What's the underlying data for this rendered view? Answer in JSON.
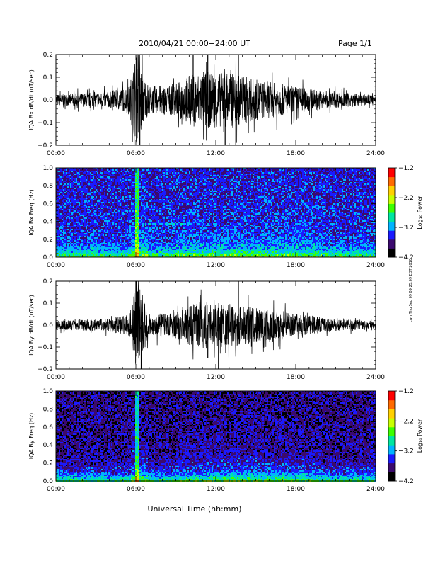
{
  "header": {
    "title": "2010/04/21  00:00−24:00 UT",
    "page": "Page 1/1"
  },
  "footer_stamp": "cwh Thu Sep 09 09:25:09 EDT 2010",
  "xaxis": {
    "label": "Universal Time (hh:mm)",
    "ticks": [
      "00:00",
      "06:00",
      "12:00",
      "18:00",
      "24:00"
    ],
    "range_hours": [
      0,
      24
    ]
  },
  "colorbar": {
    "label": "Log₁₀ Power",
    "ticks": [
      "−1.2",
      "−2.2",
      "−3.2",
      "−4.2"
    ],
    "range": [
      -4.2,
      -1.2
    ],
    "colors": [
      "#000000",
      "#3b0a6e",
      "#1a1aff",
      "#00b4ff",
      "#00e6a0",
      "#3cff00",
      "#c8ff00",
      "#ffd000",
      "#ff6a00",
      "#ff0000"
    ]
  },
  "chart_data": [
    {
      "type": "line",
      "panel": "waveform",
      "ylabel": "IQA Bx dB/dt (nT/sec)",
      "ylim": [
        -0.2,
        0.2
      ],
      "yticks": [
        "0.2",
        "0.1",
        "0.0",
        "−0.1",
        "−0.2"
      ],
      "color": "#000000",
      "x_hours": [
        0,
        2,
        4,
        5.5,
        6,
        6.5,
        7,
        9,
        10,
        11,
        12,
        13,
        14,
        15,
        16,
        18,
        20,
        22,
        24
      ],
      "envelope": [
        0.025,
        0.03,
        0.035,
        0.06,
        0.2,
        0.12,
        0.06,
        0.07,
        0.11,
        0.13,
        0.12,
        0.12,
        0.11,
        0.09,
        0.08,
        0.06,
        0.04,
        0.03,
        0.02
      ],
      "spikes": [
        [
          6.1,
          0.2
        ],
        [
          6.3,
          -0.2
        ],
        [
          10.3,
          0.2
        ],
        [
          11.4,
          0.2
        ],
        [
          12.7,
          -0.2
        ],
        [
          13.5,
          -0.2
        ],
        [
          13.7,
          0.2
        ]
      ]
    },
    {
      "type": "heatmap",
      "panel": "spectrogram",
      "ylabel": "IQA Bx Freq (Hz)",
      "ylim": [
        0.0,
        1.0
      ],
      "yticks": [
        "1.0",
        "0.8",
        "0.6",
        "0.4",
        "0.2",
        "0.0"
      ]
    },
    {
      "type": "line",
      "panel": "waveform",
      "ylabel": "IQA By dB/dt (nT/sec)",
      "ylim": [
        -0.2,
        0.2
      ],
      "yticks": [
        "0.2",
        "0.1",
        "0.0",
        "−0.1",
        "−0.2"
      ],
      "color": "#000000",
      "x_hours": [
        0,
        2,
        4,
        5.5,
        6,
        6.5,
        7,
        9,
        10,
        11,
        12,
        13,
        14,
        15,
        16,
        18,
        20,
        22,
        24
      ],
      "envelope": [
        0.02,
        0.025,
        0.03,
        0.05,
        0.2,
        0.14,
        0.05,
        0.06,
        0.09,
        0.11,
        0.1,
        0.1,
        0.09,
        0.08,
        0.07,
        0.05,
        0.035,
        0.025,
        0.015
      ],
      "spikes": [
        [
          6.0,
          0.2
        ],
        [
          6.4,
          -0.2
        ],
        [
          13.7,
          0.2
        ],
        [
          11.4,
          -0.15
        ],
        [
          12.2,
          -0.2
        ]
      ]
    },
    {
      "type": "heatmap",
      "panel": "spectrogram",
      "ylabel": "IQA By Freq (Hz)",
      "ylim": [
        0.0,
        1.0
      ],
      "yticks": [
        "1.0",
        "0.8",
        "0.6",
        "0.4",
        "0.2",
        "0.0"
      ]
    }
  ]
}
